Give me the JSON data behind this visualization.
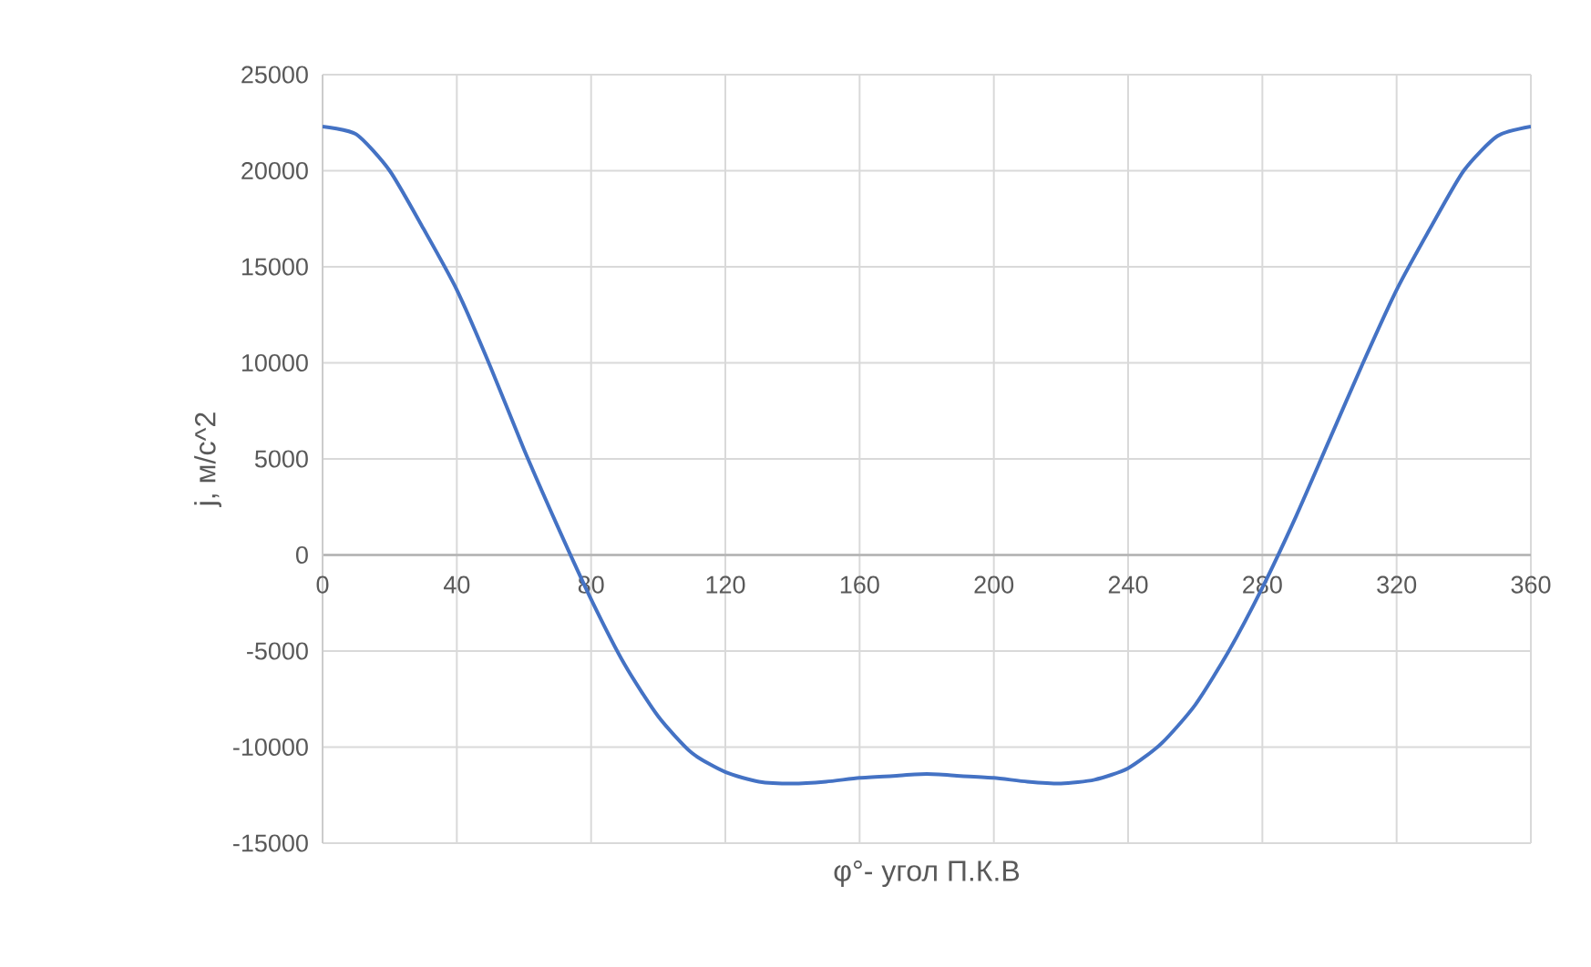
{
  "chart_data": {
    "type": "line",
    "xlabel": "φ°- угол П.К.В",
    "ylabel": "j, м/с^2",
    "x": [
      0,
      10,
      20,
      30,
      40,
      50,
      60,
      70,
      80,
      90,
      100,
      110,
      120,
      130,
      140,
      150,
      160,
      170,
      180,
      190,
      200,
      210,
      220,
      230,
      240,
      250,
      260,
      270,
      280,
      290,
      300,
      310,
      320,
      330,
      340,
      350,
      360
    ],
    "series": [
      {
        "color": "#4472c4",
        "values": [
          22300,
          21900,
          20000,
          17000,
          13800,
          9800,
          5500,
          1500,
          -2300,
          -5700,
          -8400,
          -10300,
          -11300,
          -11800,
          -11900,
          -11800,
          -11600,
          -11500,
          -11400,
          -11500,
          -11600,
          -11800,
          -11900,
          -11700,
          -11100,
          -9800,
          -7800,
          -5000,
          -1700,
          2000,
          6000,
          10000,
          13800,
          17000,
          20000,
          21800,
          22300
        ]
      }
    ],
    "xlim": [
      0,
      360
    ],
    "xticks": [
      0,
      40,
      80,
      120,
      160,
      200,
      240,
      280,
      320,
      360
    ],
    "ylim": [
      -15000,
      25000
    ],
    "yticks": [
      -15000,
      -10000,
      -5000,
      0,
      5000,
      10000,
      15000,
      20000,
      25000
    ],
    "grid": true,
    "marker": "none",
    "line_style": "solid"
  }
}
